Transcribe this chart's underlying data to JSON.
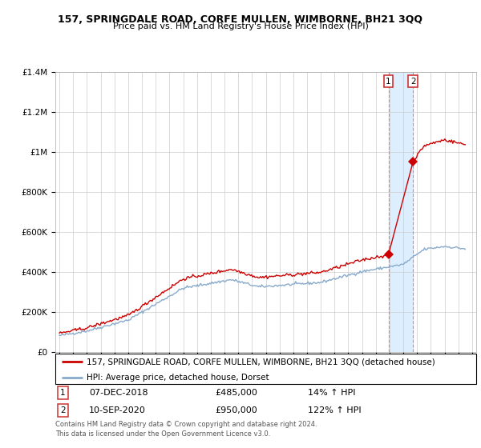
{
  "title": "157, SPRINGDALE ROAD, CORFE MULLEN, WIMBORNE, BH21 3QQ",
  "subtitle": "Price paid vs. HM Land Registry's House Price Index (HPI)",
  "red_label": "157, SPRINGDALE ROAD, CORFE MULLEN, WIMBORNE, BH21 3QQ (detached house)",
  "blue_label": "HPI: Average price, detached house, Dorset",
  "annotation1_date": "07-DEC-2018",
  "annotation1_price": "£485,000",
  "annotation1_pct": "14% ↑ HPI",
  "annotation2_date": "10-SEP-2020",
  "annotation2_price": "£950,000",
  "annotation2_pct": "122% ↑ HPI",
  "footnote": "Contains HM Land Registry data © Crown copyright and database right 2024.\nThis data is licensed under the Open Government Licence v3.0.",
  "sale1_year": 2018.92,
  "sale1_price": 485000,
  "sale2_year": 2020.71,
  "sale2_price": 950000,
  "ylim_max": 1400000,
  "xlim_min": 1994.7,
  "xlim_max": 2025.3,
  "red_color": "#cc0000",
  "blue_color": "#88aacc",
  "shade_color": "#ddeeff",
  "dashed_line_color": "#dd8888"
}
